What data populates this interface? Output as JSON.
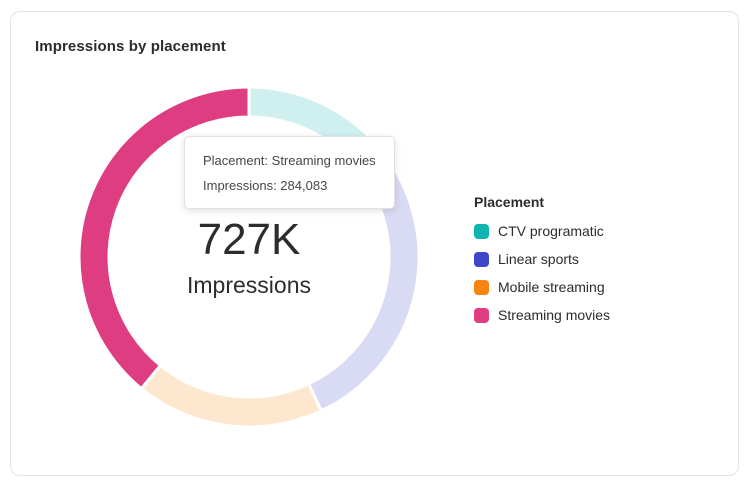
{
  "card": {
    "title": "Impressions by placement"
  },
  "center": {
    "value": "727K",
    "label": "Impressions"
  },
  "tooltip": {
    "line1": "Placement: Streaming movies",
    "line2": "Impressions: 284,083"
  },
  "legend": {
    "title": "Placement"
  },
  "chart_data": {
    "type": "pie",
    "subtype": "donut",
    "title": "Impressions by placement",
    "center_total": "727K",
    "center_total_numeric": 727000,
    "center_units": "Impressions",
    "legend_position": "right",
    "legend_title": "Placement",
    "start_angle_deg": 0,
    "outer_radius": 170,
    "inner_radius": 140,
    "gap_stroke_color": "#ffffff",
    "faded_opacity": 0.2,
    "segments": [
      {
        "id": "ctv-programatic",
        "label": "CTV programatic",
        "value": 94600,
        "estimated": true,
        "color": "#0FB5AE",
        "faded": true
      },
      {
        "id": "linear-sports",
        "label": "Linear sports",
        "value": 218000,
        "estimated": true,
        "color": "#4046CA",
        "faded": true
      },
      {
        "id": "mobile-streaming",
        "label": "Mobile streaming",
        "value": 130000,
        "estimated": true,
        "color": "#F68511",
        "faded": true
      },
      {
        "id": "streaming-movies",
        "label": "Streaming movies",
        "value": 284083,
        "estimated": false,
        "color": "#DE3D82",
        "faded": false,
        "highlighted": true,
        "tooltip_value_text": "284,083"
      }
    ]
  }
}
